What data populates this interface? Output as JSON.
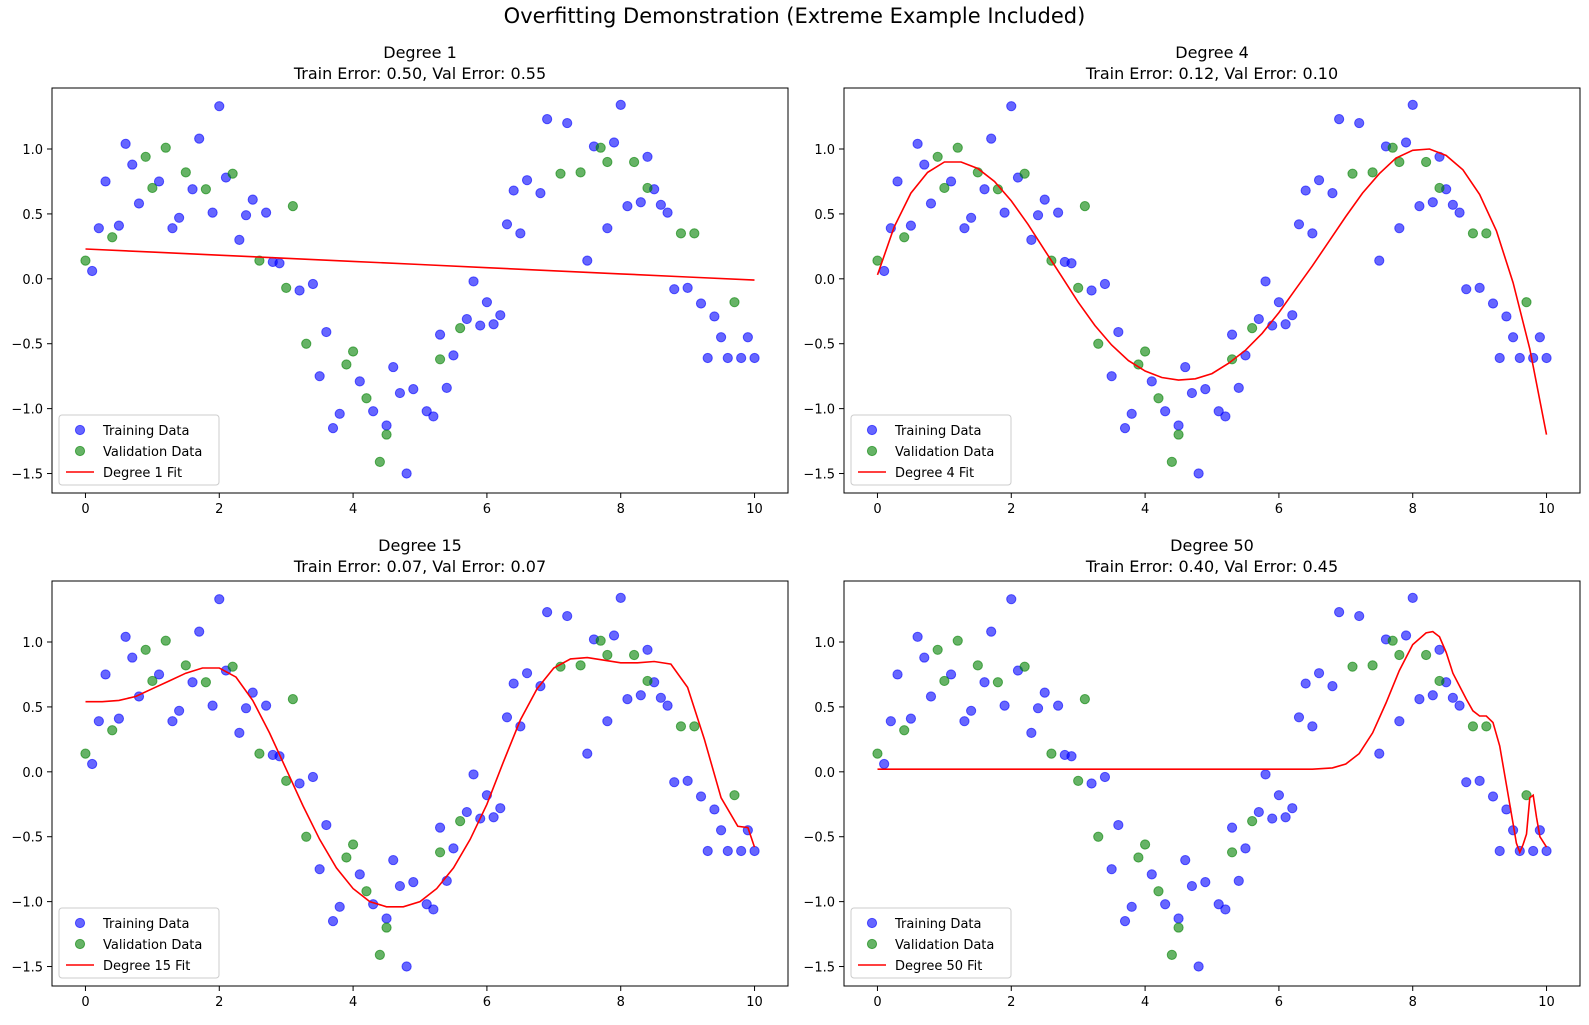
{
  "figure": {
    "suptitle": "Overfitting Demonstration (Extreme Example Included)"
  },
  "colors": {
    "training": "#0000ff",
    "validation": "#008000",
    "fit": "#ff0000"
  },
  "chart_data": [
    {
      "type": "scatter",
      "title": "Degree 1",
      "subtitle": "Train Error: 0.50, Val Error: 0.55",
      "xlim": [
        -0.5,
        10.5
      ],
      "ylim": [
        -1.65,
        1.47
      ],
      "xticks": [
        0,
        2,
        4,
        6,
        8,
        10
      ],
      "yticks": [
        -1.5,
        -1.0,
        -0.5,
        0.0,
        0.5,
        1.0
      ],
      "grid": false,
      "legend_position": "lower-left",
      "series": [
        {
          "name": "Training Data",
          "kind": "scatter",
          "color": "#0000ff",
          "x": [
            0.1,
            0.2,
            0.3,
            0.5,
            0.6,
            0.7,
            0.8,
            1.1,
            1.3,
            1.4,
            1.6,
            1.7,
            1.9,
            2.0,
            2.1,
            2.3,
            2.4,
            2.5,
            2.7,
            2.8,
            2.9,
            3.2,
            3.4,
            3.5,
            3.6,
            3.7,
            3.8,
            4.1,
            4.3,
            4.5,
            4.6,
            4.7,
            4.8,
            4.9,
            5.1,
            5.2,
            5.3,
            5.4,
            5.5,
            5.7,
            5.8,
            5.9,
            6.0,
            6.1,
            6.2,
            6.3,
            6.4,
            6.5,
            6.6,
            6.8,
            6.9,
            7.2,
            7.5,
            7.6,
            7.8,
            7.9,
            8.0,
            8.1,
            8.3,
            8.4,
            8.5,
            8.6,
            8.7,
            8.8,
            9.0,
            9.2,
            9.3,
            9.4,
            9.5,
            9.6,
            9.8,
            9.9,
            10.0
          ],
          "y": [
            0.06,
            0.39,
            0.75,
            0.41,
            1.04,
            0.88,
            0.58,
            0.75,
            0.39,
            0.47,
            0.69,
            1.08,
            0.51,
            1.33,
            0.78,
            0.3,
            0.49,
            0.61,
            0.51,
            0.13,
            0.12,
            -0.09,
            -0.04,
            -0.75,
            -0.41,
            -1.15,
            -1.04,
            -0.79,
            -1.02,
            -1.13,
            -0.68,
            -0.88,
            -1.5,
            -0.85,
            -1.02,
            -1.06,
            -0.43,
            -0.84,
            -0.59,
            -0.31,
            -0.02,
            -0.36,
            -0.18,
            -0.35,
            -0.28,
            0.42,
            0.68,
            0.35,
            0.76,
            0.66,
            1.23,
            1.2,
            0.14,
            1.02,
            0.39,
            1.05,
            1.34,
            0.56,
            0.59,
            0.94,
            0.69,
            0.57,
            0.51,
            -0.08,
            -0.07,
            -0.19,
            -0.61,
            -0.29,
            -0.45,
            -0.61,
            -0.61,
            -0.45,
            -0.61
          ]
        },
        {
          "name": "Validation Data",
          "kind": "scatter",
          "color": "#008000",
          "x": [
            0.0,
            0.4,
            0.9,
            1.0,
            1.2,
            1.5,
            1.8,
            2.2,
            2.6,
            3.0,
            3.1,
            3.3,
            3.9,
            4.0,
            4.2,
            4.4,
            4.5,
            5.3,
            5.6,
            7.1,
            7.4,
            7.7,
            7.8,
            8.2,
            8.4,
            8.9,
            9.1,
            9.7
          ],
          "y": [
            0.14,
            0.32,
            0.94,
            0.7,
            1.01,
            0.82,
            0.69,
            0.81,
            0.14,
            -0.07,
            0.56,
            -0.5,
            -0.66,
            -0.56,
            -0.92,
            -1.41,
            -1.2,
            -0.62,
            -0.38,
            0.81,
            0.82,
            1.01,
            0.9,
            0.9,
            0.7,
            0.35,
            0.35,
            -0.18
          ]
        },
        {
          "name": "Degree 1 Fit",
          "kind": "line",
          "color": "#ff0000",
          "x": [
            0,
            1,
            2,
            3,
            4,
            5,
            6,
            7,
            8,
            9,
            10
          ],
          "y": [
            0.23,
            0.206,
            0.182,
            0.158,
            0.134,
            0.11,
            0.086,
            0.062,
            0.038,
            0.014,
            -0.01
          ]
        }
      ]
    },
    {
      "type": "scatter",
      "title": "Degree 4",
      "subtitle": "Train Error: 0.12, Val Error: 0.10",
      "xlim": [
        -0.5,
        10.5
      ],
      "ylim": [
        -1.65,
        1.47
      ],
      "xticks": [
        0,
        2,
        4,
        6,
        8,
        10
      ],
      "yticks": [
        -1.5,
        -1.0,
        -0.5,
        0.0,
        0.5,
        1.0
      ],
      "grid": false,
      "legend_position": "lower-left",
      "series": [
        {
          "name": "Training Data",
          "kind": "scatter",
          "color": "#0000ff",
          "same_as_panel": 0
        },
        {
          "name": "Validation Data",
          "kind": "scatter",
          "color": "#008000",
          "same_as_panel": 0
        },
        {
          "name": "Degree 4 Fit",
          "kind": "line",
          "color": "#ff0000",
          "x": [
            0,
            0.25,
            0.5,
            0.75,
            1.0,
            1.25,
            1.5,
            1.75,
            2.0,
            2.25,
            2.5,
            2.75,
            3.0,
            3.25,
            3.5,
            3.75,
            4.0,
            4.25,
            4.5,
            4.75,
            5.0,
            5.25,
            5.5,
            5.75,
            6.0,
            6.25,
            6.5,
            6.75,
            7.0,
            7.25,
            7.5,
            7.75,
            8.0,
            8.25,
            8.5,
            8.75,
            9.0,
            9.25,
            9.5,
            9.75,
            10.0
          ],
          "y": [
            0.03,
            0.4,
            0.66,
            0.82,
            0.9,
            0.9,
            0.85,
            0.75,
            0.6,
            0.42,
            0.22,
            0.02,
            -0.18,
            -0.36,
            -0.51,
            -0.63,
            -0.71,
            -0.76,
            -0.78,
            -0.77,
            -0.73,
            -0.65,
            -0.55,
            -0.42,
            -0.26,
            -0.08,
            0.1,
            0.29,
            0.48,
            0.66,
            0.81,
            0.93,
            0.99,
            1.0,
            0.95,
            0.84,
            0.65,
            0.37,
            -0.03,
            -0.54,
            -1.2
          ]
        }
      ]
    },
    {
      "type": "scatter",
      "title": "Degree 15",
      "subtitle": "Train Error: 0.07, Val Error: 0.07",
      "xlim": [
        -0.5,
        10.5
      ],
      "ylim": [
        -1.65,
        1.47
      ],
      "xticks": [
        0,
        2,
        4,
        6,
        8,
        10
      ],
      "yticks": [
        -1.5,
        -1.0,
        -0.5,
        0.0,
        0.5,
        1.0
      ],
      "grid": false,
      "legend_position": "lower-left",
      "series": [
        {
          "name": "Training Data",
          "kind": "scatter",
          "color": "#0000ff",
          "same_as_panel": 0
        },
        {
          "name": "Validation Data",
          "kind": "scatter",
          "color": "#008000",
          "same_as_panel": 0
        },
        {
          "name": "Degree 15 Fit",
          "kind": "line",
          "color": "#ff0000",
          "x": [
            0,
            0.25,
            0.5,
            0.75,
            1.0,
            1.25,
            1.5,
            1.75,
            2.0,
            2.25,
            2.5,
            2.75,
            3.0,
            3.25,
            3.5,
            3.75,
            4.0,
            4.25,
            4.5,
            4.75,
            5.0,
            5.25,
            5.5,
            5.75,
            6.0,
            6.25,
            6.5,
            6.75,
            7.0,
            7.25,
            7.5,
            7.75,
            8.0,
            8.25,
            8.5,
            8.75,
            9.0,
            9.25,
            9.5,
            9.75,
            9.9,
            10.0
          ],
          "y": [
            0.54,
            0.54,
            0.55,
            0.58,
            0.64,
            0.7,
            0.76,
            0.8,
            0.8,
            0.73,
            0.55,
            0.3,
            0.02,
            -0.26,
            -0.52,
            -0.74,
            -0.9,
            -1.0,
            -1.04,
            -1.04,
            -1.0,
            -0.9,
            -0.74,
            -0.52,
            -0.25,
            0.08,
            0.4,
            0.64,
            0.8,
            0.87,
            0.88,
            0.86,
            0.84,
            0.84,
            0.85,
            0.83,
            0.65,
            0.25,
            -0.2,
            -0.42,
            -0.43,
            -0.58
          ]
        }
      ]
    },
    {
      "type": "scatter",
      "title": "Degree 50",
      "subtitle": "Train Error: 0.40, Val Error: 0.45",
      "xlim": [
        -0.5,
        10.5
      ],
      "ylim": [
        -1.65,
        1.47
      ],
      "xticks": [
        0,
        2,
        4,
        6,
        8,
        10
      ],
      "yticks": [
        -1.5,
        -1.0,
        -0.5,
        0.0,
        0.5,
        1.0
      ],
      "grid": false,
      "legend_position": "lower-left",
      "series": [
        {
          "name": "Training Data",
          "kind": "scatter",
          "color": "#0000ff",
          "same_as_panel": 0
        },
        {
          "name": "Validation Data",
          "kind": "scatter",
          "color": "#008000",
          "same_as_panel": 0
        },
        {
          "name": "Degree 50 Fit",
          "kind": "line",
          "color": "#ff0000",
          "x": [
            0,
            6.0,
            6.5,
            6.8,
            7.0,
            7.2,
            7.4,
            7.6,
            7.8,
            8.0,
            8.2,
            8.3,
            8.4,
            8.5,
            8.6,
            8.8,
            8.9,
            9.0,
            9.1,
            9.2,
            9.3,
            9.4,
            9.5,
            9.55,
            9.6,
            9.65,
            9.7,
            9.75,
            9.8,
            9.85,
            9.9,
            10.0
          ],
          "y": [
            0.02,
            0.02,
            0.02,
            0.03,
            0.06,
            0.14,
            0.3,
            0.53,
            0.78,
            0.98,
            1.07,
            1.08,
            1.04,
            0.92,
            0.76,
            0.56,
            0.47,
            0.43,
            0.43,
            0.38,
            0.2,
            -0.1,
            -0.4,
            -0.55,
            -0.62,
            -0.56,
            -0.48,
            -0.2,
            -0.18,
            -0.35,
            -0.5,
            -0.58
          ]
        }
      ]
    }
  ]
}
